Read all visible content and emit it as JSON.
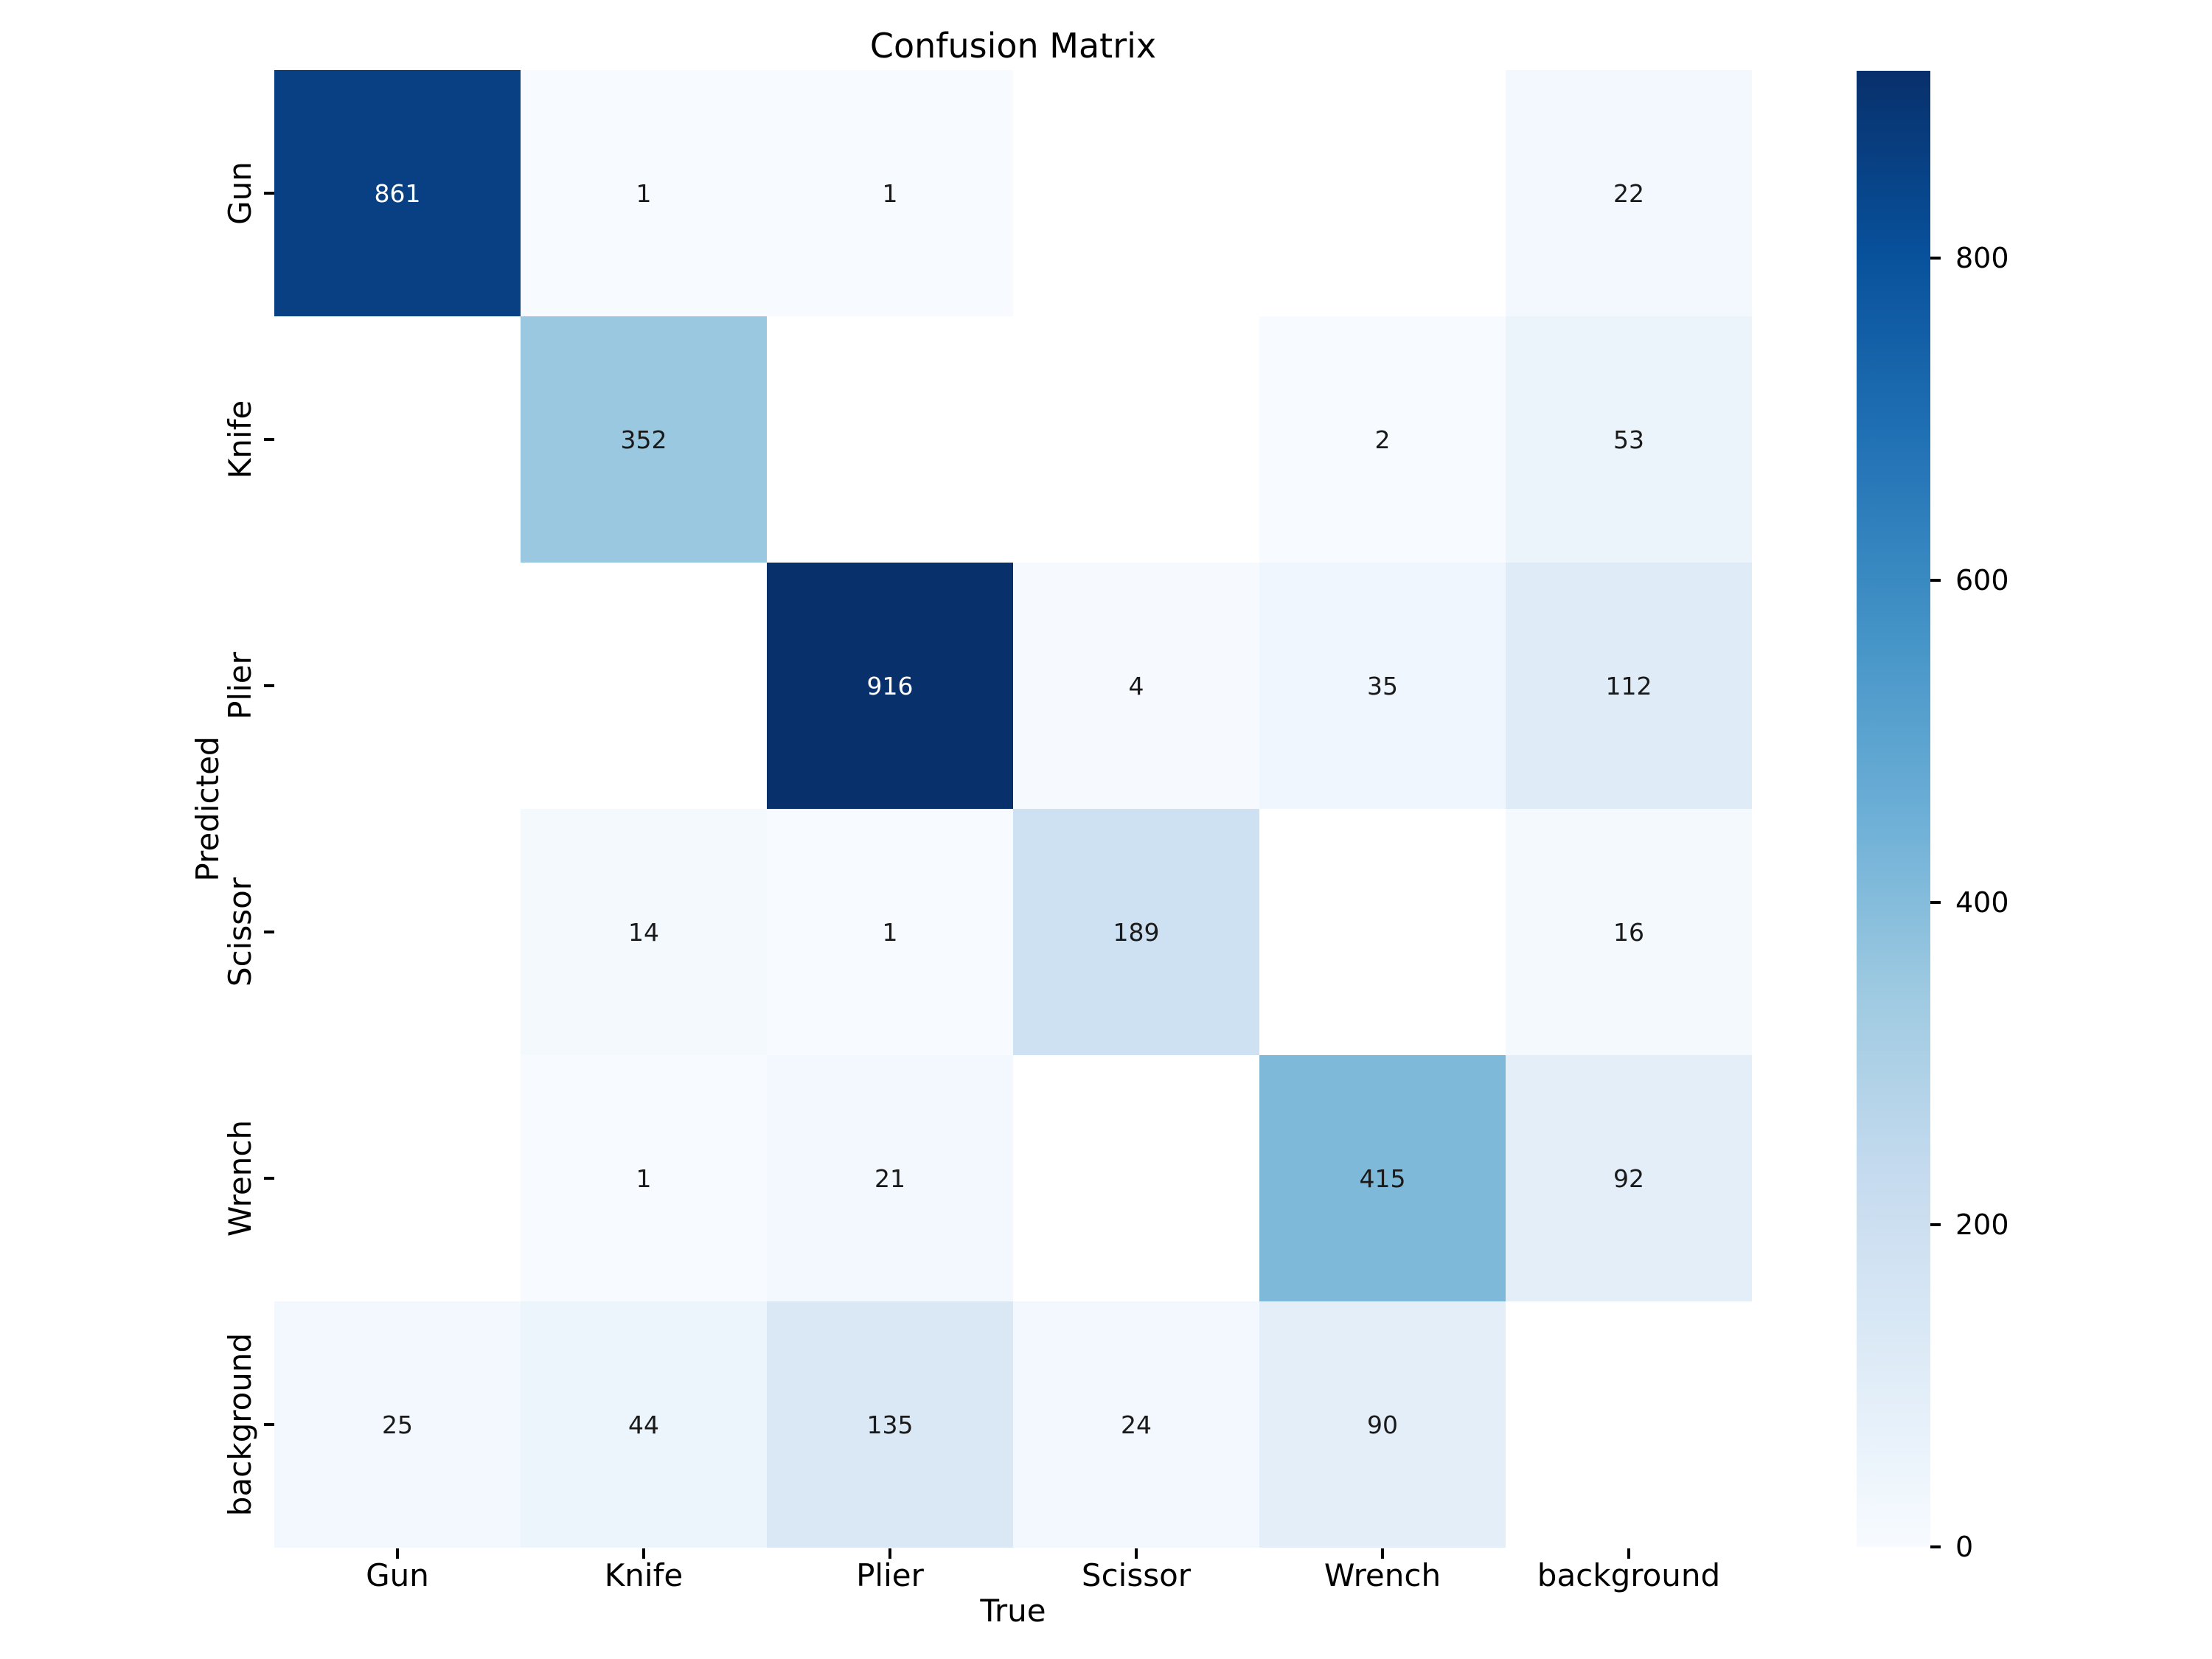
{
  "figure": {
    "background": "#ffffff"
  },
  "chart_data": {
    "type": "heatmap",
    "title": "Confusion Matrix",
    "xlabel": "True",
    "ylabel": "Predicted",
    "x_categories": [
      "Gun",
      "Knife",
      "Plier",
      "Scissor",
      "Wrench",
      "background"
    ],
    "y_categories": [
      "Gun",
      "Knife",
      "Plier",
      "Scissor",
      "Wrench",
      "background"
    ],
    "matrix": [
      [
        861,
        1,
        1,
        null,
        null,
        22
      ],
      [
        null,
        352,
        null,
        null,
        2,
        53
      ],
      [
        null,
        null,
        916,
        4,
        35,
        112
      ],
      [
        null,
        14,
        1,
        189,
        null,
        16
      ],
      [
        null,
        1,
        21,
        null,
        415,
        92
      ],
      [
        25,
        44,
        135,
        24,
        90,
        null
      ]
    ],
    "vmin": 0,
    "vmax": 916,
    "colormap": "Blues",
    "colormap_stops": [
      "#f7fbff",
      "#deebf7",
      "#c6dbef",
      "#9ecae1",
      "#6baed6",
      "#4292c6",
      "#2171b5",
      "#08519c",
      "#08306b"
    ],
    "empty_cell_color": "#ffffff",
    "annotation_color_dark": "#1a1a1a",
    "annotation_color_light": "#ffffff",
    "tick_color": "#000000",
    "grid": false,
    "legend": false,
    "colorbar": {
      "position": "right",
      "orientation": "vertical",
      "ticks": [
        0,
        200,
        400,
        600,
        800
      ]
    }
  }
}
